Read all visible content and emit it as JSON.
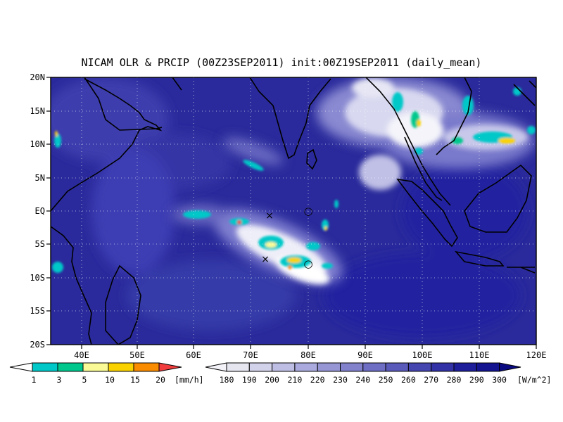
{
  "map": {
    "title": "NICAM OLR & PRCIP (00Z23SEP2011) init:00Z19SEP2011 (daily_mean)",
    "lon_ticks": [
      "40E",
      "50E",
      "60E",
      "70E",
      "80E",
      "90E",
      "100E",
      "110E",
      "120E"
    ],
    "lat_ticks": [
      "20N",
      "15N",
      "10N",
      "5N",
      "EQ",
      "5S",
      "10S",
      "15S",
      "20S"
    ],
    "lon_range": [
      35,
      120
    ],
    "lat_range": [
      -20,
      20
    ],
    "grid": "dotted"
  },
  "precip_colorbar": {
    "labels": [
      "1",
      "3",
      "5",
      "10",
      "15",
      "20"
    ],
    "unit": "[mm/h]",
    "colors": [
      "#00c8c8",
      "#00c88c",
      "#fafa96",
      "#fad200",
      "#fa8c00",
      "#f03c3c"
    ]
  },
  "olr_colorbar": {
    "labels": [
      "180",
      "190",
      "200",
      "210",
      "220",
      "230",
      "240",
      "250",
      "260",
      "270",
      "280",
      "290",
      "300"
    ],
    "unit": "[W/m^2]",
    "colors": [
      "#e6e6f0",
      "#d2d2ea",
      "#bebee4",
      "#aaaade",
      "#9696d4",
      "#8282cc",
      "#6e6ec4",
      "#5a5aba",
      "#4646b0",
      "#3232a6",
      "#1e1e9a",
      "#141490",
      "#0a0a80"
    ]
  },
  "markers": [
    {
      "symbol": "×",
      "lon": 73,
      "lat": -0.7
    },
    {
      "symbol": "○",
      "lon": 80,
      "lat": 0
    },
    {
      "symbol": "×",
      "lon": 72.5,
      "lat": -8.6
    },
    {
      "symbol": "○",
      "lon": 80,
      "lat": -9.3
    }
  ]
}
